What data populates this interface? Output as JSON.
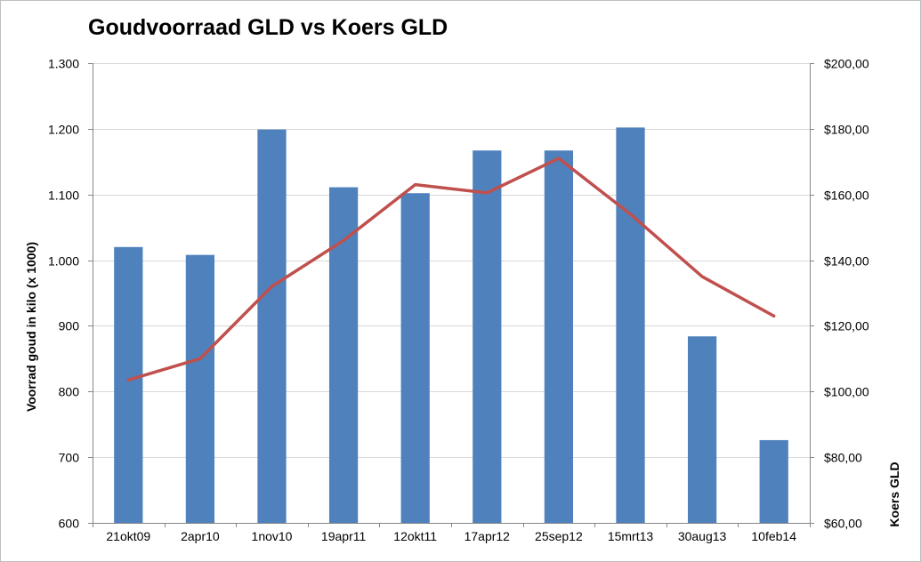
{
  "chart_data": {
    "type": "bar",
    "title": "Goudvoorraad GLD vs Koers GLD",
    "categories": [
      "21okt09",
      "2apr10",
      "1nov10",
      "19apr11",
      "12okt11",
      "17apr12",
      "25sep12",
      "15mrt13",
      "30aug13",
      "10feb14"
    ],
    "series": [
      {
        "type": "bar",
        "axis": "left",
        "color": "#4F81BD",
        "values": [
          1020,
          1008,
          1199,
          1111,
          1102,
          1167,
          1167,
          1202,
          884,
          726
        ]
      },
      {
        "type": "line",
        "axis": "right",
        "color": "#C0504D",
        "values": [
          103.5,
          110,
          132,
          146,
          163,
          160.5,
          171,
          154,
          135,
          123
        ]
      }
    ],
    "ylabel": "Voorrad goud in kilo (x 1000)",
    "y2label": "Koers GLD",
    "ylim": [
      600,
      1300
    ],
    "y2lim": [
      60,
      200
    ],
    "yticks": [
      "600",
      "700",
      "800",
      "900",
      "1.000",
      "1.100",
      "1.200",
      "1.300"
    ],
    "y2ticks": [
      "$60,00",
      "$80,00",
      "$100,00",
      "$120,00",
      "$140,00",
      "$160,00",
      "$180,00",
      "$200,00"
    ],
    "grid": true,
    "legend": "none"
  }
}
